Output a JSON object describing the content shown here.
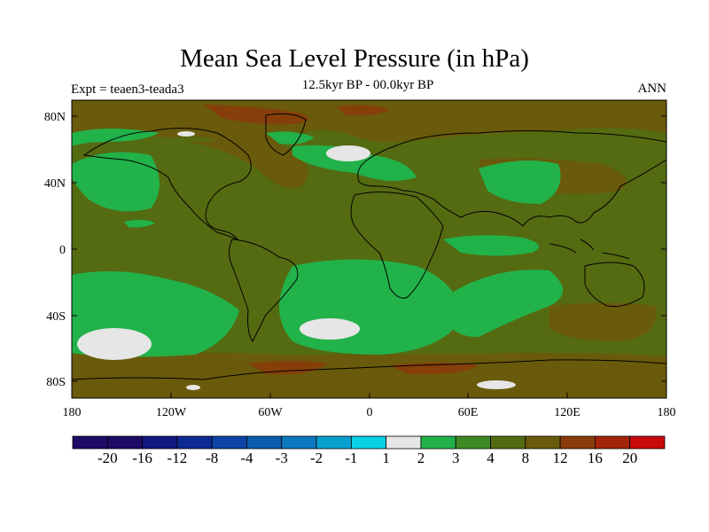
{
  "title": "Mean Sea Level Pressure (in hPa)",
  "left_label": "Expt = teaen3-teada3",
  "center_label": "12.5kyr BP - 00.0kyr BP",
  "right_label": "ANN",
  "map": {
    "projection": "cylindrical-equidistant",
    "lon_range": [
      -180,
      180
    ],
    "lat_range": [
      -90,
      90
    ],
    "lat_ticks": [
      "80N",
      "40N",
      "0",
      "40S",
      "80S"
    ],
    "lon_ticks": [
      "180",
      "120W",
      "60W",
      "0",
      "60E",
      "120E",
      "180"
    ],
    "background_class": "3 to 4 (olive green)",
    "coastlines": "black"
  },
  "colorbar": {
    "labels": [
      "-20",
      "-16",
      "-12",
      "-8",
      "-4",
      "-3",
      "-2",
      "-1",
      "1",
      "2",
      "3",
      "4",
      "8",
      "12",
      "16",
      "20"
    ],
    "colors": [
      "#1e0b66",
      "#101a7e",
      "#0c2a92",
      "#0b44a5",
      "#0a5dae",
      "#0a79c0",
      "#08a0cf",
      "#0ad2e6",
      "#e6e6e6",
      "#22b24a",
      "#3e8a24",
      "#546b12",
      "#6a5a0b",
      "#8a3c0a",
      "#a4240a",
      "#c80a0a"
    ]
  },
  "chart_data": {
    "type": "heatmap",
    "title": "Mean Sea Level Pressure (in hPa)",
    "subtitle": "12.5kyr BP - 00.0kyr BP",
    "variable": "Mean Sea Level Pressure difference",
    "units": "hPa",
    "levels": [
      -20,
      -16,
      -12,
      -8,
      -4,
      -3,
      -2,
      -1,
      1,
      2,
      3,
      4,
      8,
      12,
      16,
      20
    ],
    "x_ticks": [
      "180",
      "120W",
      "60W",
      "0",
      "60E",
      "120E",
      "180"
    ],
    "y_ticks": [
      "80N",
      "40N",
      "0",
      "40S",
      "80S"
    ],
    "regions": [
      {
        "area": "Southern Ocean (Pacific sector, near 50S 160W)",
        "class": "-1 to 1"
      },
      {
        "area": "South Atlantic (near 45S 30W)",
        "class": "-1 to 1"
      },
      {
        "area": "North Atlantic / Norway Sea (near 65N 10W)",
        "class": "-1 to 1"
      },
      {
        "area": "North Pacific (near 40N 160W)",
        "class": "1 to 2"
      },
      {
        "area": "Central Asia (near 40N 90E)",
        "class": "1 to 2"
      },
      {
        "area": "South Pacific / South Atlantic subtropics",
        "class": "1 to 2"
      },
      {
        "area": "Arctic and North Atlantic margin",
        "class": "4 to 8"
      },
      {
        "area": "Antarctic coast",
        "class": "4 to 8"
      },
      {
        "area": "Most of globe",
        "class": "3 to 4"
      }
    ]
  }
}
